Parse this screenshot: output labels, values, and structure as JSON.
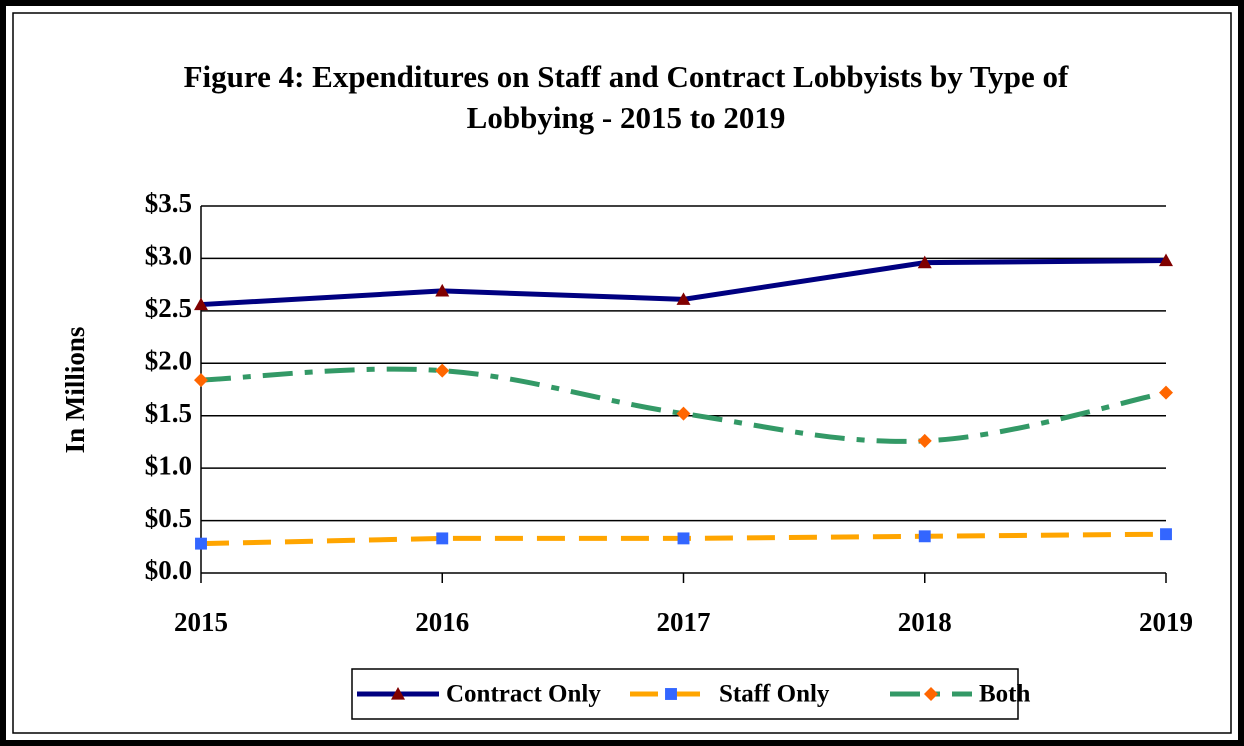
{
  "chart_data": {
    "type": "line",
    "title": "Figure 4:  Expenditures on Staff and Contract Lobbyists by Type of Lobbying - 2015 to 2019",
    "y_label": "In Millions",
    "categories": [
      "2015",
      "2016",
      "2017",
      "2018",
      "2019"
    ],
    "series": [
      {
        "name": "Contract Only",
        "color": "#000080",
        "marker_color": "#800000",
        "marker": "triangle",
        "dash": "solid",
        "smooth": false,
        "values": [
          2.56,
          2.69,
          2.61,
          2.96,
          2.98
        ]
      },
      {
        "name": "Staff Only",
        "color": "#FFA500",
        "marker_color": "#3366FF",
        "marker": "square",
        "dash": "dash",
        "smooth": false,
        "values": [
          0.28,
          0.33,
          0.33,
          0.35,
          0.37
        ]
      },
      {
        "name": "Both",
        "color": "#339966",
        "marker_color": "#FF6600",
        "marker": "diamond",
        "dash": "dashdot",
        "smooth": true,
        "values": [
          1.84,
          1.93,
          1.52,
          1.26,
          1.72
        ]
      }
    ],
    "ylim": [
      0,
      3.5
    ],
    "yticks": [
      {
        "value": 0,
        "label": "$0.0"
      },
      {
        "value": 0.5,
        "label": "$0.5"
      },
      {
        "value": 1,
        "label": "$1.0"
      },
      {
        "value": 1.5,
        "label": "$1.5"
      },
      {
        "value": 2,
        "label": "$2.0"
      },
      {
        "value": 2.5,
        "label": "$2.5"
      },
      {
        "value": 3,
        "label": "$3.0"
      },
      {
        "value": 3.5,
        "label": "$3.5"
      }
    ],
    "grid": true,
    "legend": "bottom"
  }
}
